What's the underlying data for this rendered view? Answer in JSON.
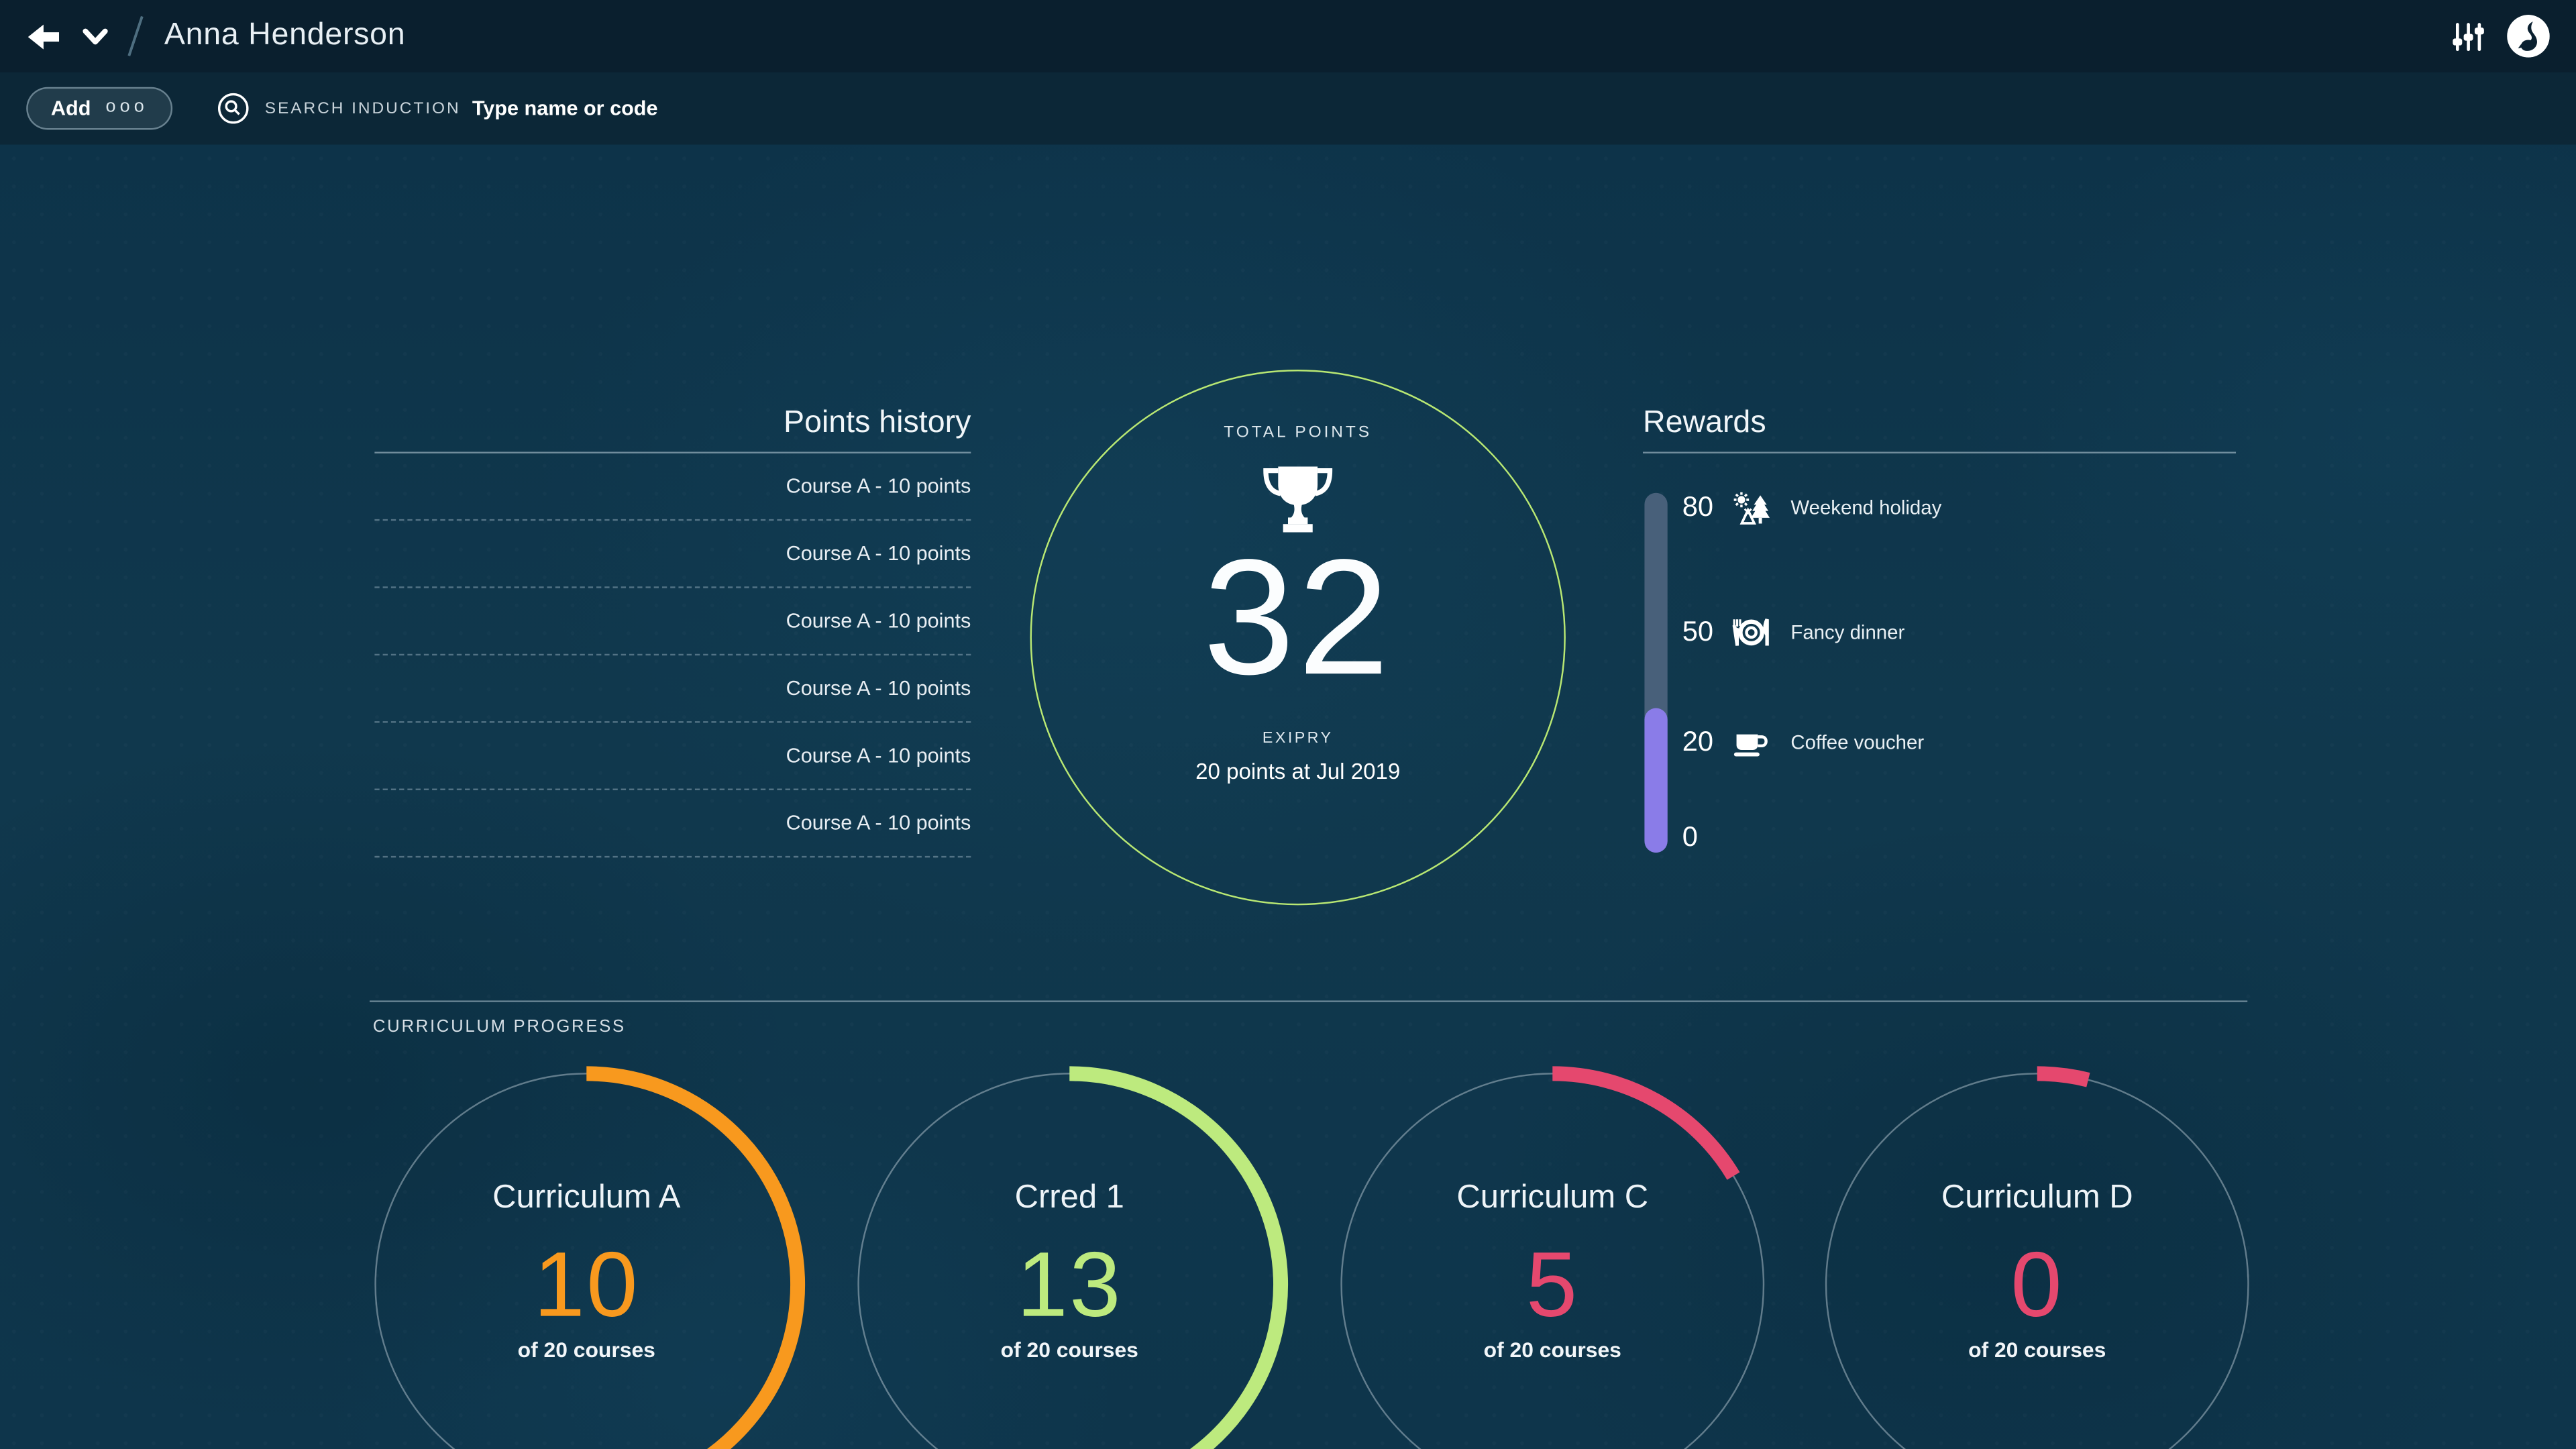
{
  "header": {
    "title": "Anna Henderson"
  },
  "toolbar": {
    "add_label": "Add",
    "add_dots": "ooo",
    "search_label": "SEARCH INDUCTION",
    "search_placeholder": "Type name or code"
  },
  "points_history": {
    "title": "Points history",
    "entries": [
      "Course A - 10 points",
      "Course A - 10 points",
      "Course A - 10 points",
      "Course A - 10 points",
      "Course A - 10 points",
      "Course A - 10 points"
    ]
  },
  "total_points": {
    "label": "TOTAL POINTS",
    "value": "32",
    "expiry_label": "EXIPRY",
    "expiry_text": "20 points at Jul 2019"
  },
  "rewards": {
    "title": "Rewards",
    "scale_zero": "0",
    "fill_percent": 40,
    "fill_color": "#8a7ce8",
    "track_color": "#48607a",
    "items": [
      {
        "points": "80",
        "icon": "holiday-icon",
        "label": "Weekend holiday"
      },
      {
        "points": "50",
        "icon": "dinner-icon",
        "label": "Fancy dinner"
      },
      {
        "points": "20",
        "icon": "coffee-icon",
        "label": "Coffee voucher"
      }
    ]
  },
  "curriculum": {
    "section_label": "CURRICULUM PROGRESS",
    "of_label": "of 20 courses",
    "total_courses": 20,
    "items": [
      {
        "name": "Curriculum A",
        "completed": "10",
        "color": "#f8991e",
        "arc_degrees": 176
      },
      {
        "name": "Crred 1",
        "completed": "13",
        "color": "#bdea7e",
        "arc_degrees": 205
      },
      {
        "name": "Curriculum C",
        "completed": "5",
        "color": "#e5486e",
        "arc_degrees": 59
      },
      {
        "name": "Curriculum D",
        "completed": "0",
        "color": "#e5486e",
        "arc_degrees": 14
      }
    ]
  },
  "colors": {
    "total_circle_border": "#b9e873",
    "background": "#10384d",
    "topbar": "#0a1f2e",
    "toolbar": "#0c2737"
  }
}
